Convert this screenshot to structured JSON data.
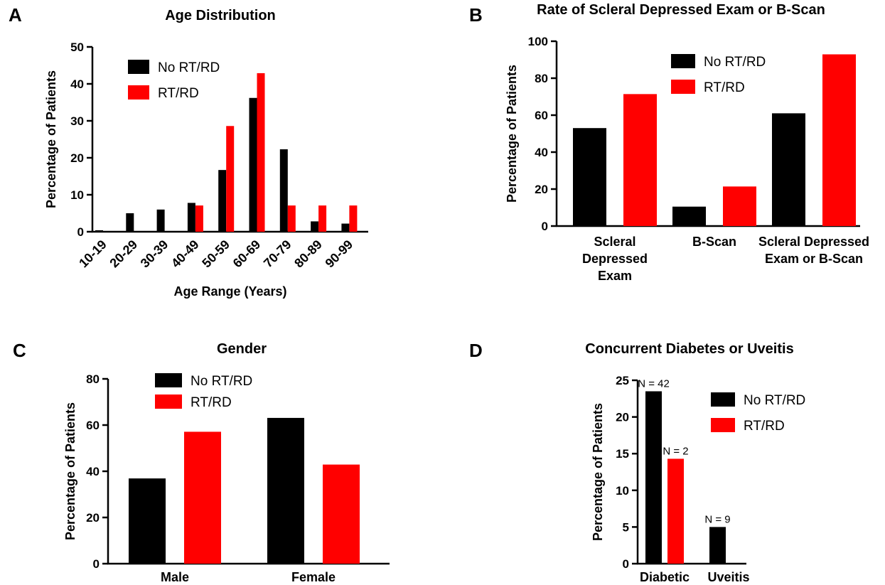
{
  "colors": {
    "no_rt_rd": "#000000",
    "rt_rd": "#ff0000"
  },
  "chart_data": [
    {
      "panel": "A",
      "type": "bar",
      "title": "Age Distribution",
      "xlabel": "Age Range (Years)",
      "ylabel": "Percentage of Patients",
      "ylim": [
        0,
        50
      ],
      "yticks": [
        0,
        10,
        20,
        30,
        40,
        50
      ],
      "categories": [
        "10-19",
        "20-29",
        "30-39",
        "40-49",
        "50-59",
        "60-69",
        "70-79",
        "80-89",
        "90-99"
      ],
      "series": [
        {
          "name": "No RT/RD",
          "values": [
            0.4,
            5,
            6,
            7.8,
            16.7,
            36.2,
            22.3,
            2.8,
            2.2
          ]
        },
        {
          "name": "RT/RD",
          "values": [
            0,
            0,
            0,
            7.1,
            28.6,
            42.9,
            7.1,
            7.1,
            7.1
          ]
        }
      ],
      "legend": "top-left",
      "grid": false
    },
    {
      "panel": "B",
      "type": "bar",
      "title": "Rate of Scleral Depressed Exam or B-Scan",
      "xlabel": "",
      "ylabel": "Percentage of Patients",
      "ylim": [
        0,
        100
      ],
      "yticks": [
        0,
        20,
        40,
        60,
        80,
        100
      ],
      "categories": [
        [
          "Scleral",
          "Depressed",
          "Exam"
        ],
        [
          "B-Scan"
        ],
        [
          "Scleral Depressed",
          "Exam or B-Scan"
        ]
      ],
      "series": [
        {
          "name": "No RT/RD",
          "values": [
            53,
            10.5,
            61
          ]
        },
        {
          "name": "RT/RD",
          "values": [
            71.4,
            21.4,
            92.9
          ]
        }
      ],
      "legend": "top-right",
      "grid": false
    },
    {
      "panel": "C",
      "type": "bar",
      "title": "Gender",
      "xlabel": "",
      "ylabel": "Percentage of Patients",
      "ylim": [
        0,
        80
      ],
      "yticks": [
        0,
        20,
        40,
        60,
        80
      ],
      "categories": [
        [
          "Male"
        ],
        [
          "Female"
        ]
      ],
      "series": [
        {
          "name": "No RT/RD",
          "values": [
            36.9,
            63.1
          ]
        },
        {
          "name": "RT/RD",
          "values": [
            57.1,
            42.9
          ]
        }
      ],
      "legend": "top-center",
      "grid": false
    },
    {
      "panel": "D",
      "type": "bar",
      "title": "Concurrent Diabetes or Uveitis",
      "xlabel": "",
      "ylabel": "Percentage of Patients",
      "ylim": [
        0,
        25
      ],
      "yticks": [
        0,
        5,
        10,
        15,
        20,
        25
      ],
      "categories": [
        [
          "Diabetic"
        ],
        [
          "Uveitis"
        ]
      ],
      "series": [
        {
          "name": "No RT/RD",
          "values": [
            23.5,
            5
          ]
        },
        {
          "name": "RT/RD",
          "values": [
            14.3,
            0
          ]
        }
      ],
      "annotations": [
        [
          "N = 42",
          "N = 9"
        ],
        [
          "N = 2",
          ""
        ]
      ],
      "legend": "top-right",
      "grid": false
    }
  ]
}
